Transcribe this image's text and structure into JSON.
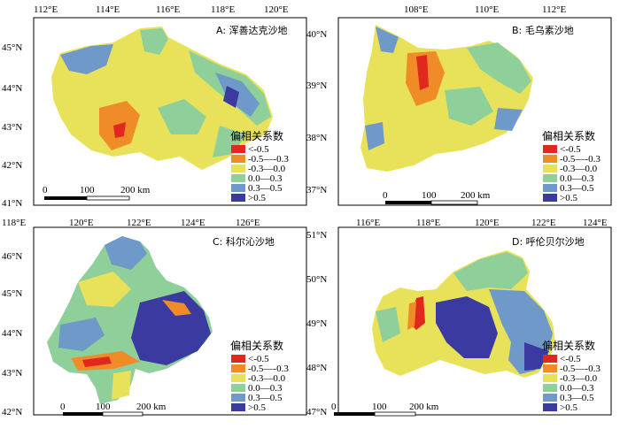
{
  "legend_colors": [
    "#e0281e",
    "#f08c28",
    "#e8e25a",
    "#8fcf9a",
    "#6f99c8",
    "#3a3aa0"
  ],
  "panels": [
    {
      "id": "A",
      "title": "A: 浑善达克沙地",
      "top_ticks": [
        "112°E",
        "114°E",
        "116°E",
        "118°E",
        "120°E"
      ],
      "left_ticks": [
        "45°N",
        "44°N",
        "43°N",
        "42°N",
        "41°N"
      ],
      "legend_title": "偏相关系数",
      "legend_labels": [
        "<-0.5",
        "-0.5—-0.3",
        "-0.3—0.0",
        "0.0—0.3",
        "0.3—0.5",
        ">0.5"
      ],
      "scale_labels": [
        "0",
        "100",
        "200 km"
      ]
    },
    {
      "id": "B",
      "title": "B: 毛乌素沙地",
      "top_ticks": [
        "108°E",
        "110°E",
        "112°E"
      ],
      "left_ticks": [
        "40°N",
        "39°N",
        "38°N",
        "37°N"
      ],
      "legend_title": "偏相关系数",
      "legend_labels": [
        "<-0.5",
        "-0.5—-0.3",
        "-0.3—0.0",
        "0.0—0.3",
        "0.3—0.5",
        ">0.5"
      ],
      "scale_labels": [
        "0",
        "100",
        "200 km"
      ]
    },
    {
      "id": "C",
      "title": "C: 科尔沁沙地",
      "top_ticks": [
        "118°E",
        "120°E",
        "122°E",
        "124°E",
        "126°E"
      ],
      "left_ticks": [
        "46°N",
        "45°N",
        "44°N",
        "43°N",
        "42°N"
      ],
      "legend_title": "偏相关系数",
      "legend_labels": [
        "<-0.5",
        "-0.5—-0.3",
        "-0.3—0.0",
        "0.0—0.3",
        "0.3—0.5",
        ">0.5"
      ],
      "scale_labels": [
        "0",
        "100",
        "200 km"
      ]
    },
    {
      "id": "D",
      "title": "D: 呼伦贝尔沙地",
      "top_ticks": [
        "116°E",
        "118°E",
        "120°E",
        "122°E",
        "124°E"
      ],
      "left_ticks": [
        "51°N",
        "50°N",
        "49°N",
        "48°N",
        "47°N"
      ],
      "legend_title": "偏相关系数",
      "legend_labels": [
        "<-0.5",
        "-0.5—-0.3",
        "-0.3—0.0",
        "0.0—0.3",
        "0.3—0.5",
        ">0.5"
      ],
      "scale_labels": [
        "0",
        "100",
        "200 km"
      ]
    }
  ]
}
